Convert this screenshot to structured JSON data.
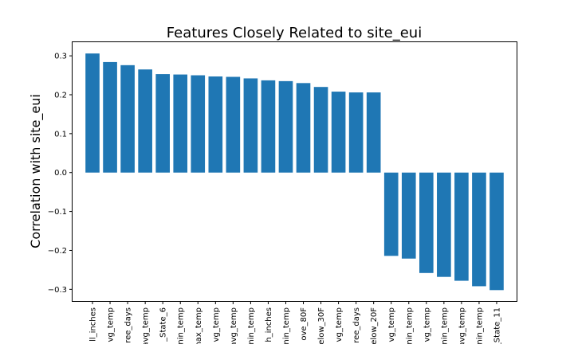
{
  "chart_data": {
    "type": "bar",
    "title": "Features Closely Related to site_eui",
    "xlabel": "",
    "ylabel": "Correlation with site_eui",
    "ylim": [
      -0.33,
      0.335
    ],
    "yticks": [
      "0.3",
      "0.2",
      "0.1",
      "0.0",
      "−0.1",
      "−0.2",
      "−0.3"
    ],
    "ytick_values": [
      0.3,
      0.2,
      0.1,
      0.0,
      -0.1,
      -0.2,
      -0.3
    ],
    "grid": false,
    "bar_color": "#1f77b4",
    "categories": [
      "ll_inches",
      "vg_temp",
      "ree_days",
      "avg_temp",
      "_State_6",
      "nin_temp",
      "nax_temp",
      "vg_temp",
      "avg_temp",
      "nin_temp",
      "h_inches",
      "nin_temp",
      "ove_80F",
      "elow_30F",
      "vg_temp",
      "ree_days",
      "elow_20F",
      "vg_temp",
      "nin_temp",
      "vg_temp",
      "nin_temp",
      "avg_temp",
      "nin_temp",
      "_State_11"
    ],
    "values": [
      0.306,
      0.284,
      0.276,
      0.265,
      0.253,
      0.252,
      0.25,
      0.247,
      0.246,
      0.242,
      0.237,
      0.235,
      0.23,
      0.22,
      0.208,
      0.206,
      0.206,
      -0.214,
      -0.221,
      -0.258,
      -0.268,
      -0.278,
      -0.292,
      -0.302
    ]
  }
}
